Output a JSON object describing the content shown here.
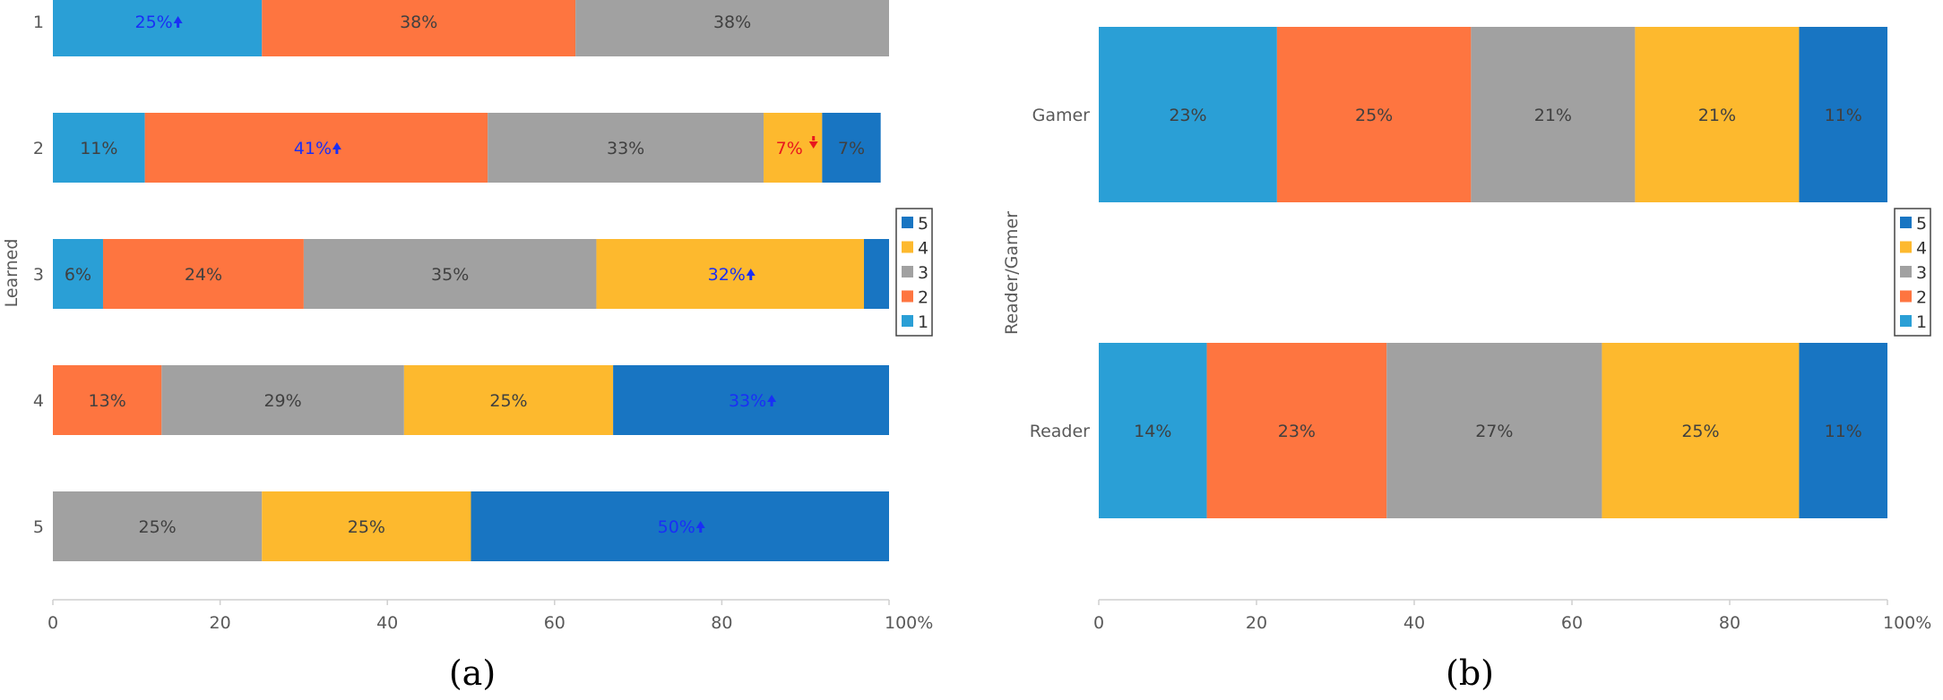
{
  "colors": {
    "1": "#2a9fd6",
    "2": "#fe7540",
    "3": "#a1a1a1",
    "4": "#fdb92e",
    "5": "#1875c2",
    "label_default": "#404040",
    "label_up": "#1a2ff5",
    "label_down": "#e8171e",
    "axis": "#cfcfcf",
    "tick_text": "#595959"
  },
  "captions": [
    "(a)",
    "(b)"
  ],
  "chart_data": [
    {
      "type": "bar",
      "stacked": true,
      "orientation": "horizontal",
      "categories": [
        "1",
        "2",
        "3",
        "4",
        "5"
      ],
      "ylabel": "Learned",
      "xticks": [
        "0",
        "20",
        "40",
        "60",
        "80",
        "100%"
      ],
      "xlim": [
        0,
        100
      ],
      "legend": {
        "entries": [
          "5",
          "4",
          "3",
          "2",
          "1"
        ],
        "placement": "right"
      },
      "series": [
        {
          "name": "1",
          "values": [
            25,
            11,
            6,
            0,
            0
          ]
        },
        {
          "name": "2",
          "values": [
            37.5,
            41,
            24,
            13,
            0
          ]
        },
        {
          "name": "3",
          "values": [
            37.5,
            33,
            35,
            29,
            25
          ]
        },
        {
          "name": "4",
          "values": [
            0,
            7,
            32,
            25,
            25
          ]
        },
        {
          "name": "5",
          "values": [
            0,
            7,
            3,
            33,
            50
          ]
        }
      ],
      "labels": [
        [
          {
            "t": "25%",
            "s": "up"
          },
          {
            "t": "38%"
          },
          {
            "t": "38%"
          },
          null,
          null
        ],
        [
          {
            "t": "11%"
          },
          {
            "t": "41%",
            "s": "up"
          },
          {
            "t": "33%"
          },
          {
            "t": "7%",
            "s": "down"
          },
          {
            "t": "7%"
          }
        ],
        [
          {
            "t": "6%"
          },
          {
            "t": "24%"
          },
          {
            "t": "35%"
          },
          {
            "t": "32%",
            "s": "up"
          },
          null
        ],
        [
          null,
          {
            "t": "13%"
          },
          {
            "t": "29%"
          },
          {
            "t": "25%"
          },
          {
            "t": "33%",
            "s": "up"
          }
        ],
        [
          null,
          null,
          {
            "t": "25%"
          },
          {
            "t": "25%"
          },
          {
            "t": "50%",
            "s": "up"
          }
        ]
      ]
    },
    {
      "type": "bar",
      "stacked": true,
      "orientation": "horizontal",
      "categories": [
        "Gamer",
        "Reader"
      ],
      "ylabel": "Reader/Gamer",
      "xticks": [
        "0",
        "20",
        "40",
        "60",
        "80",
        "100%"
      ],
      "xlim": [
        0,
        100
      ],
      "legend": {
        "entries": [
          "5",
          "4",
          "3",
          "2",
          "1"
        ],
        "placement": "right"
      },
      "series": [
        {
          "name": "1",
          "values": [
            22.6,
            13.7
          ]
        },
        {
          "name": "2",
          "values": [
            24.6,
            22.8
          ]
        },
        {
          "name": "3",
          "values": [
            20.8,
            27.3
          ]
        },
        {
          "name": "4",
          "values": [
            20.8,
            25
          ]
        },
        {
          "name": "5",
          "values": [
            11.2,
            11.2
          ]
        }
      ],
      "labels": [
        [
          {
            "t": "23%"
          },
          {
            "t": "25%"
          },
          {
            "t": "21%"
          },
          {
            "t": "21%"
          },
          {
            "t": "11%"
          }
        ],
        [
          {
            "t": "14%"
          },
          {
            "t": "23%"
          },
          {
            "t": "27%"
          },
          {
            "t": "25%"
          },
          {
            "t": "11%"
          }
        ]
      ]
    }
  ]
}
